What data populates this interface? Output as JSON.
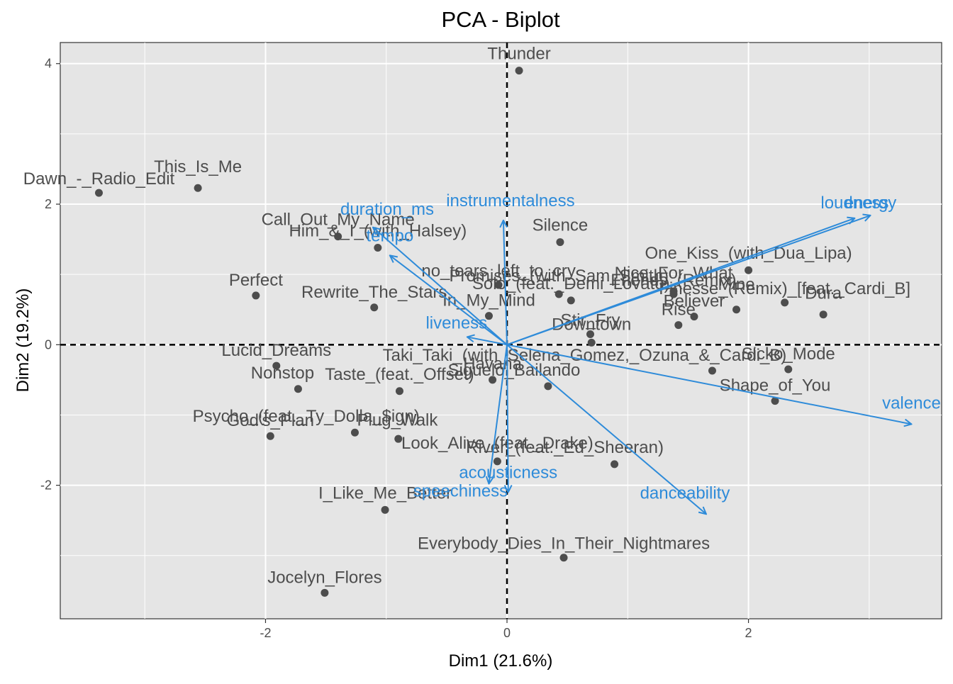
{
  "chart_data": {
    "type": "scatter",
    "title": "PCA - Biplot",
    "xlabel": "Dim1 (21.6%)",
    "ylabel": "Dim2 (19.2%)",
    "xlim": [
      -3.7,
      3.6
    ],
    "ylim": [
      -3.9,
      4.3
    ],
    "x_ticks": [
      -2,
      0,
      2
    ],
    "y_ticks": [
      -2,
      0,
      2,
      4
    ],
    "grid": true,
    "reference_lines": {
      "x": 0,
      "y": 0
    },
    "colors": {
      "points": "#4d4d4d",
      "arrows": "#2e8bd9",
      "panel": "#e5e5e5",
      "grid": "#ffffff"
    },
    "individuals": [
      {
        "label": "Thunder",
        "x": 0.1,
        "y": 3.9,
        "dx": 0,
        "dy": -16
      },
      {
        "label": "Dawn_-_Radio_Edit",
        "x": -3.38,
        "y": 2.16,
        "dx": 0,
        "dy": -12
      },
      {
        "label": "This_Is_Me",
        "x": -2.56,
        "y": 2.23,
        "dx": 0,
        "dy": -22
      },
      {
        "label": "Call_Out_My_Name",
        "x": -1.4,
        "y": 1.54,
        "dx": 0,
        "dy": -16
      },
      {
        "label": "Him_&_I_(with_Halsey)",
        "x": -1.07,
        "y": 1.38,
        "dx": 0,
        "dy": -16
      },
      {
        "label": "Silence",
        "x": 0.44,
        "y": 1.46,
        "dx": 0,
        "dy": -16
      },
      {
        "label": "One_Kiss_(with_Dua_Lipa)",
        "x": 2.0,
        "y": 1.06,
        "dx": 0,
        "dy": -16
      },
      {
        "label": "no_tears_left_to_cry",
        "x": -0.07,
        "y": 0.85,
        "dx": 0,
        "dy": -12
      },
      {
        "label": "Promises_(with_Sam_Smith)",
        "x": 0.43,
        "y": 0.72,
        "dx": 0,
        "dy": -18
      },
      {
        "label": "Nice_For_What",
        "x": 1.38,
        "y": 0.76,
        "dx": 0,
        "dy": -18
      },
      {
        "label": "Solo_(feat._Demi_Lovato)",
        "x": 0.53,
        "y": 0.63,
        "dx": 0,
        "dy": -16
      },
      {
        "label": "Friends_(Remix)",
        "x": 1.38,
        "y": 0.72,
        "dx": 0,
        "dy": -12
      },
      {
        "label": "Mine",
        "x": 1.9,
        "y": 0.5,
        "dx": 0,
        "dy": -28
      },
      {
        "label": "Finesse_(Remix)_[feat._Cardi_B]",
        "x": 2.3,
        "y": 0.6,
        "dx": 0,
        "dy": -12
      },
      {
        "label": "Dura",
        "x": 2.62,
        "y": 0.43,
        "dx": 0,
        "dy": -22
      },
      {
        "label": "Perfect",
        "x": -2.08,
        "y": 0.7,
        "dx": 0,
        "dy": -14
      },
      {
        "label": "Rewrite_The_Stars",
        "x": -1.1,
        "y": 0.53,
        "dx": 0,
        "dy": -14
      },
      {
        "label": "In_My_Mind",
        "x": -0.15,
        "y": 0.41,
        "dx": 0,
        "dy": -14
      },
      {
        "label": "Believer",
        "x": 1.55,
        "y": 0.4,
        "dx": 0,
        "dy": -14
      },
      {
        "label": "Rise",
        "x": 1.42,
        "y": 0.28,
        "dx": 0,
        "dy": -14
      },
      {
        "label": "Stir_Fry",
        "x": 0.69,
        "y": 0.15,
        "dx": 0,
        "dy": -12
      },
      {
        "label": "Downtown",
        "x": 0.7,
        "y": 0.03,
        "dx": 0,
        "dy": -18
      },
      {
        "label": "Lucid_Dreams",
        "x": -1.91,
        "y": -0.3,
        "dx": 0,
        "dy": -14
      },
      {
        "label": "Nonstop",
        "x": -1.73,
        "y": -0.63,
        "dx": -22,
        "dy": -15
      },
      {
        "label": "Taste_(feat._Offset)",
        "x": -0.89,
        "y": -0.66,
        "dx": 0,
        "dy": -16
      },
      {
        "label": "Taki_Taki_(with_Selena_Gomez,_Ozuna_&_Cardi_B)",
        "x": 1.7,
        "y": -0.37,
        "dx": -180,
        "dy": -14
      },
      {
        "label": "Sicko_Mode",
        "x": 2.33,
        "y": -0.35,
        "dx": 0,
        "dy": -14
      },
      {
        "label": "Havana",
        "x": -0.12,
        "y": -0.5,
        "dx": 0,
        "dy": -15
      },
      {
        "label": "Siguelo_Bailando",
        "x": 0.34,
        "y": -0.59,
        "dx": -48,
        "dy": -15
      },
      {
        "label": "Shape_of_You",
        "x": 2.22,
        "y": -0.8,
        "dx": 0,
        "dy": -14
      },
      {
        "label": "Psycho_(feat._Ty_Dolla_$ign)",
        "x": -0.9,
        "y": -1.34,
        "dx": -130,
        "dy": -24
      },
      {
        "label": "God's_Plan",
        "x": -1.96,
        "y": -1.3,
        "dx": 0,
        "dy": -14
      },
      {
        "label": "Plug_Walk",
        "x": -1.26,
        "y": -1.25,
        "dx": 60,
        "dy": -10
      },
      {
        "label": "Look_Alive_(feat._Drake)",
        "x": -0.08,
        "y": -1.66,
        "dx": 0,
        "dy": -18
      },
      {
        "label": "River_(feat._Ed_Sheeran)",
        "x": 0.89,
        "y": -1.7,
        "dx": -70,
        "dy": -16
      },
      {
        "label": "I_Like_Me_Better",
        "x": -1.01,
        "y": -2.35,
        "dx": 0,
        "dy": -16
      },
      {
        "label": "Everybody_Dies_In_Their_Nightmares",
        "x": 0.47,
        "y": -3.03,
        "dx": 0,
        "dy": -12
      },
      {
        "label": "Jocelyn_Flores",
        "x": -1.51,
        "y": -3.53,
        "dx": 0,
        "dy": -14
      }
    ],
    "variables": [
      {
        "label": "loudness",
        "x": 2.88,
        "y": 1.8,
        "dx": 0,
        "dy": -14
      },
      {
        "label": "energy",
        "x": 3.01,
        "y": 1.84,
        "dx": 0,
        "dy": -10
      },
      {
        "label": "duration_ms",
        "x": -1.11,
        "y": 1.67,
        "dx": 20,
        "dy": -18
      },
      {
        "label": "instrumentalness",
        "x": -0.03,
        "y": 1.77,
        "dx": 10,
        "dy": -20
      },
      {
        "label": "tempo",
        "x": -0.97,
        "y": 1.27,
        "dx": 0,
        "dy": -20
      },
      {
        "label": "liveness",
        "x": -0.33,
        "y": 0.11,
        "dx": -15,
        "dy": -12
      },
      {
        "label": "valence",
        "x": 3.35,
        "y": -1.13,
        "dx": 0,
        "dy": -22
      },
      {
        "label": "speechiness",
        "x": -0.15,
        "y": -1.98,
        "dx": -40,
        "dy": 18
      },
      {
        "label": "acousticness",
        "x": 0.01,
        "y": -2.1,
        "dx": 0,
        "dy": -20
      },
      {
        "label": "danceability",
        "x": 1.65,
        "y": -2.41,
        "dx": -30,
        "dy": -22
      }
    ]
  }
}
